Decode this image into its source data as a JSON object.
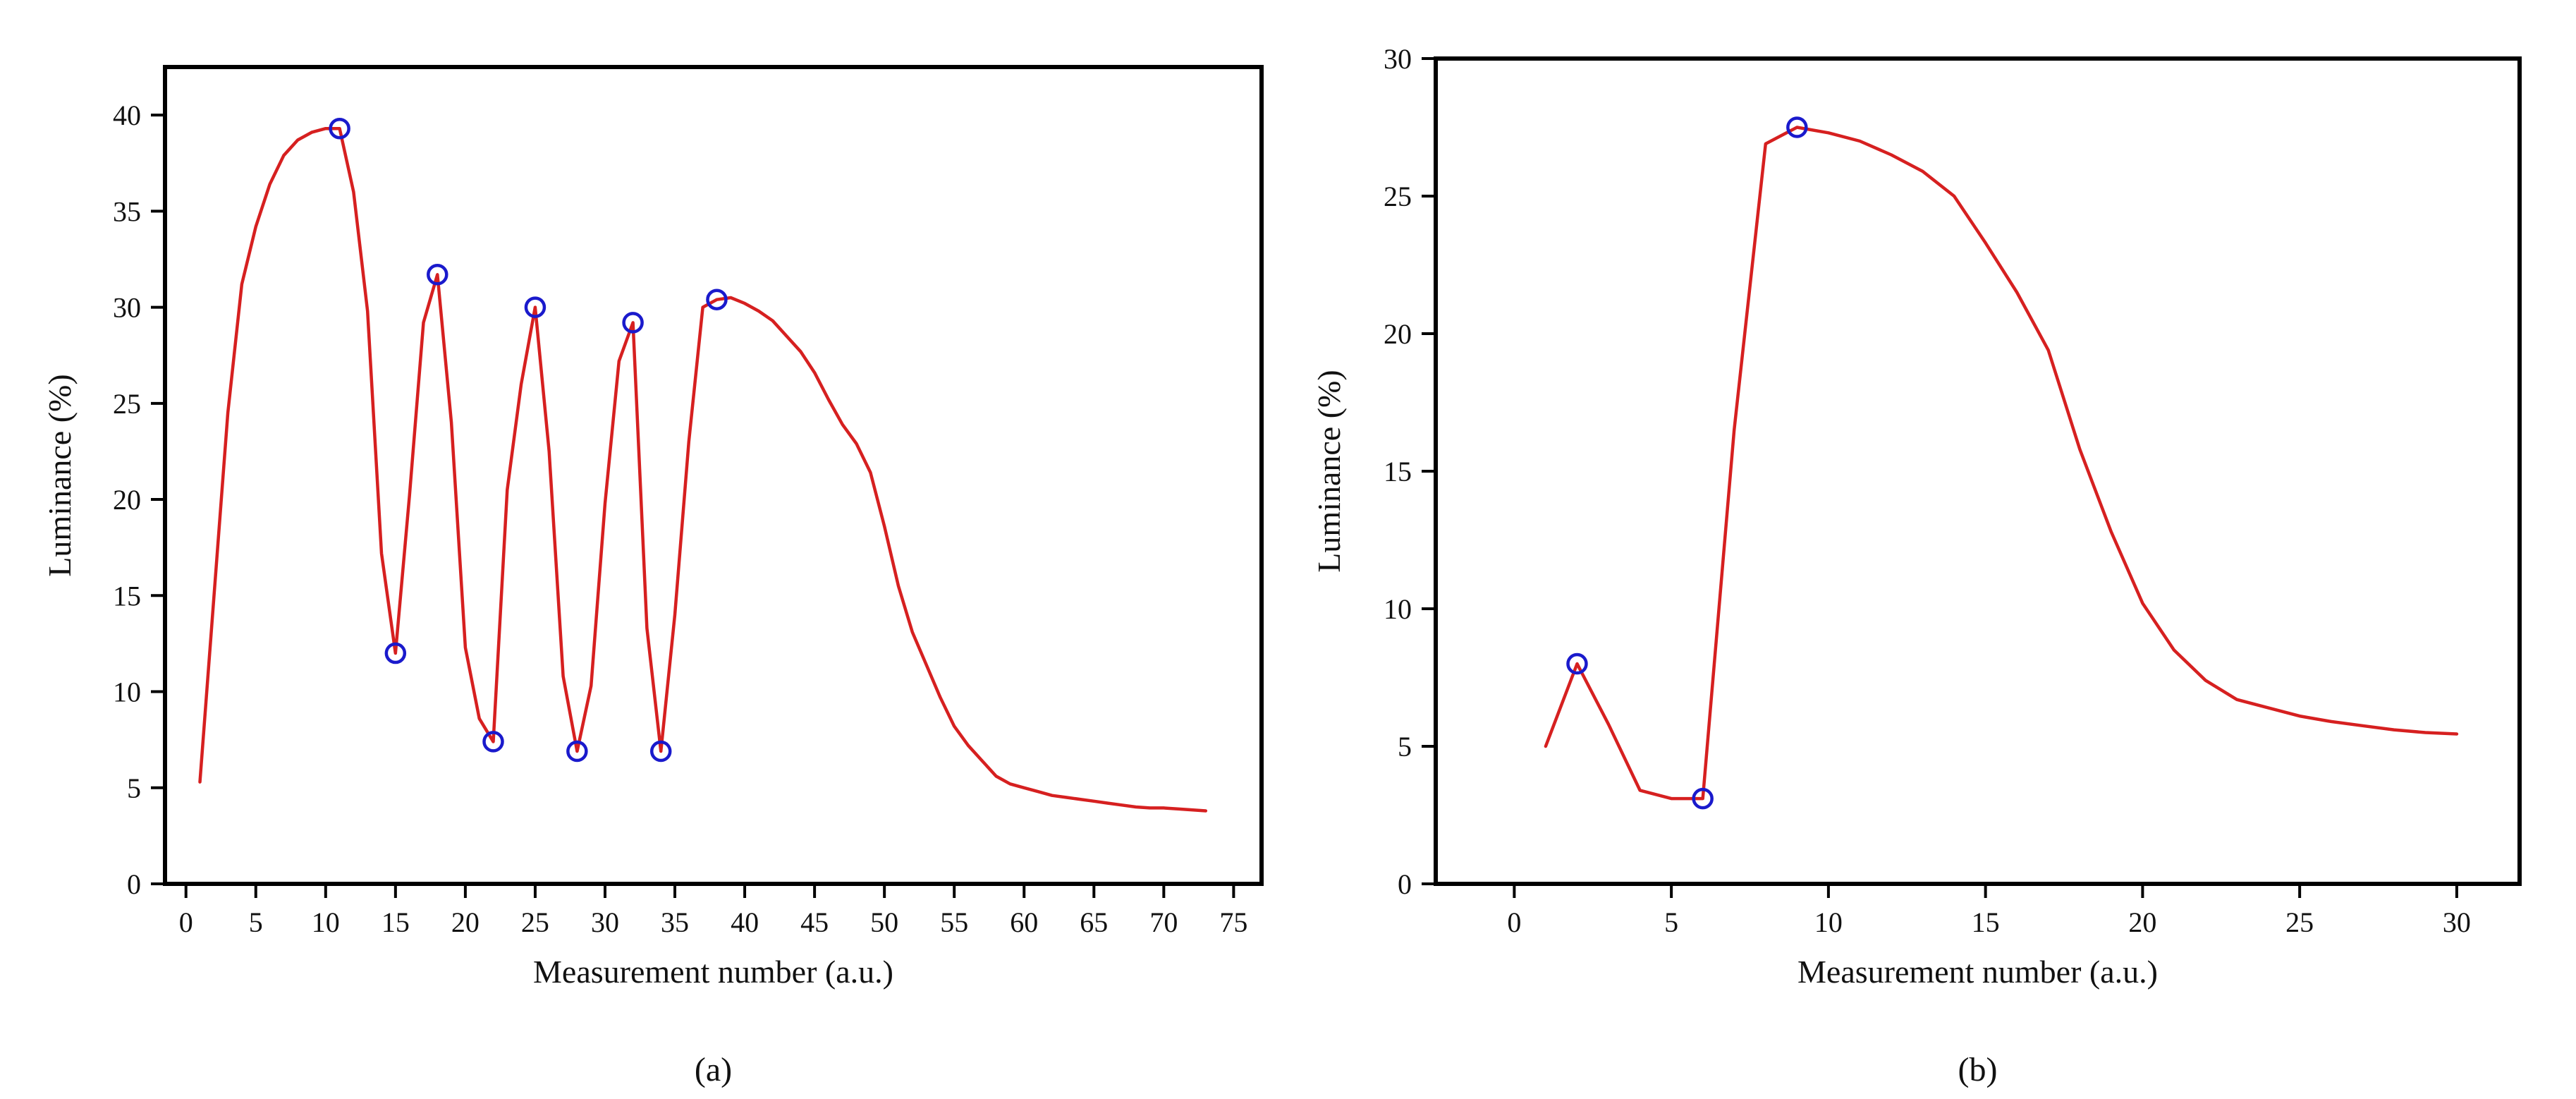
{
  "colors": {
    "line": "#d62020",
    "marker": "#1a1acc",
    "axis": "#000000"
  },
  "chart_data": [
    {
      "type": "line",
      "panel_label": "(a)",
      "xlabel": "Measurement number (a.u.)",
      "ylabel": "Luminance (%)",
      "xlim": [
        -1.5,
        77
      ],
      "ylim": [
        0,
        42.5
      ],
      "xticks": [
        0,
        5,
        10,
        15,
        20,
        25,
        30,
        35,
        40,
        45,
        50,
        55,
        60,
        65,
        70,
        75
      ],
      "yticks": [
        0,
        5,
        10,
        15,
        20,
        25,
        30,
        35,
        40
      ],
      "xtick_labels": [
        "0",
        "5",
        "10",
        "15",
        "20",
        "25",
        "30",
        "35",
        "40",
        "45",
        "50",
        "55",
        "60",
        "65",
        "70",
        "75"
      ],
      "ytick_labels": [
        "0",
        "5",
        "10",
        "15",
        "20",
        "25",
        "30",
        "35",
        "40"
      ],
      "series": [
        {
          "name": "luminance",
          "x": [
            1,
            3,
            4,
            5,
            6,
            7,
            8,
            9,
            10,
            11,
            12,
            13,
            14,
            15,
            16,
            17,
            18,
            19,
            20,
            21,
            22,
            23,
            24,
            25,
            26,
            27,
            28,
            29,
            30,
            31,
            32,
            33,
            34,
            35,
            36,
            37,
            38,
            39,
            40,
            41,
            42,
            43,
            44,
            45,
            46,
            47,
            48,
            49,
            50,
            51,
            52,
            53,
            54,
            55,
            56,
            57,
            58,
            59,
            60,
            61,
            62,
            63,
            64,
            65,
            66,
            67,
            68,
            69,
            70,
            71,
            72,
            73
          ],
          "y": [
            5.3,
            24.5,
            31.2,
            34.2,
            36.4,
            37.9,
            38.7,
            39.1,
            39.3,
            39.3,
            36.0,
            29.8,
            17.2,
            12.0,
            20.2,
            29.2,
            31.7,
            24.0,
            12.3,
            8.6,
            7.4,
            20.5,
            26.0,
            30.0,
            22.5,
            10.8,
            6.9,
            10.3,
            19.8,
            27.2,
            29.2,
            13.3,
            6.9,
            14.0,
            23.0,
            30.0,
            30.4,
            30.5,
            30.2,
            29.8,
            29.3,
            28.5,
            27.7,
            26.6,
            25.2,
            23.9,
            22.9,
            21.4,
            18.6,
            15.5,
            13.1,
            11.4,
            9.7,
            8.2,
            7.2,
            6.4,
            5.6,
            5.2,
            5.0,
            4.8,
            4.6,
            4.5,
            4.4,
            4.3,
            4.2,
            4.1,
            4.0,
            3.95,
            3.95,
            3.9,
            3.85,
            3.8
          ]
        }
      ],
      "markers": {
        "x": [
          11,
          15,
          18,
          22,
          25,
          28,
          32,
          34,
          38
        ],
        "y": [
          39.3,
          12.0,
          31.7,
          7.4,
          30.0,
          6.9,
          29.2,
          6.9,
          30.4
        ]
      }
    },
    {
      "type": "line",
      "panel_label": "(b)",
      "xlabel": "Measurement number (a.u.)",
      "ylabel": "Luminance (%)",
      "xlim": [
        -2.5,
        32
      ],
      "ylim": [
        0,
        30
      ],
      "xticks": [
        0,
        5,
        10,
        15,
        20,
        25,
        30
      ],
      "yticks": [
        0,
        5,
        10,
        15,
        20,
        25,
        30
      ],
      "xtick_labels": [
        "0",
        "5",
        "10",
        "15",
        "20",
        "25",
        "30"
      ],
      "ytick_labels": [
        "0",
        "5",
        "10",
        "15",
        "20",
        "25",
        "30"
      ],
      "series": [
        {
          "name": "luminance",
          "x": [
            1,
            2,
            3,
            4,
            5,
            6,
            7,
            8,
            9,
            10,
            11,
            12,
            13,
            14,
            15,
            16,
            17,
            18,
            19,
            20,
            21,
            22,
            23,
            24,
            25,
            26,
            27,
            28,
            29,
            30
          ],
          "y": [
            5.0,
            8.0,
            5.8,
            3.4,
            3.1,
            3.1,
            16.5,
            26.9,
            27.5,
            27.3,
            27.0,
            26.5,
            25.9,
            25.0,
            23.3,
            21.5,
            19.4,
            15.8,
            12.8,
            10.2,
            8.5,
            7.4,
            6.7,
            6.4,
            6.1,
            5.9,
            5.75,
            5.6,
            5.5,
            5.45
          ]
        }
      ],
      "markers": {
        "x": [
          2,
          6,
          9
        ],
        "y": [
          8.0,
          3.1,
          27.5
        ]
      }
    }
  ]
}
